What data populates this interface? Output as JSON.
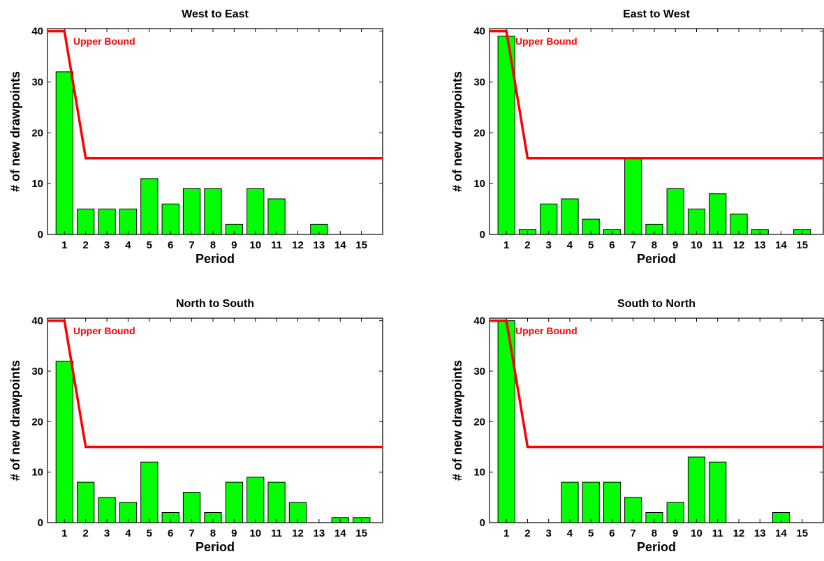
{
  "chart_data": [
    {
      "type": "bar",
      "title": "West to East",
      "xlabel": "Period",
      "ylabel": "# of new drawpoints",
      "categories": [
        "1",
        "2",
        "3",
        "4",
        "5",
        "6",
        "7",
        "8",
        "9",
        "10",
        "11",
        "12",
        "13",
        "14",
        "15"
      ],
      "values": [
        32,
        5,
        5,
        5,
        11,
        6,
        9,
        9,
        2,
        9,
        7,
        0,
        2,
        0,
        0
      ],
      "ylim": [
        0,
        40.5
      ],
      "yticks": [
        0,
        10,
        20,
        30,
        40
      ],
      "bar_color": "#00ff00",
      "upper_bound": {
        "label": "Upper Bound",
        "color": "#ff0000",
        "x": [
          0.2,
          1,
          2,
          16
        ],
        "y": [
          40,
          40,
          15,
          15
        ]
      }
    },
    {
      "type": "bar",
      "title": "East to West",
      "xlabel": "Period",
      "ylabel": "# of new drawpoints",
      "categories": [
        "1",
        "2",
        "3",
        "4",
        "5",
        "6",
        "7",
        "8",
        "9",
        "10",
        "11",
        "12",
        "13",
        "14",
        "15"
      ],
      "values": [
        39,
        1,
        6,
        7,
        3,
        1,
        15,
        2,
        9,
        5,
        8,
        4,
        1,
        0,
        1
      ],
      "ylim": [
        0,
        40.5
      ],
      "yticks": [
        0,
        10,
        20,
        30,
        40
      ],
      "bar_color": "#00ff00",
      "upper_bound": {
        "label": "Upper Bound",
        "color": "#ff0000",
        "x": [
          0.2,
          1,
          2,
          16
        ],
        "y": [
          40,
          40,
          15,
          15
        ]
      }
    },
    {
      "type": "bar",
      "title": "North to South",
      "xlabel": "Period",
      "ylabel": "# of new drawpoints",
      "categories": [
        "1",
        "2",
        "3",
        "4",
        "5",
        "6",
        "7",
        "8",
        "9",
        "10",
        "11",
        "12",
        "13",
        "14",
        "15"
      ],
      "values": [
        32,
        8,
        5,
        4,
        12,
        2,
        6,
        2,
        8,
        9,
        8,
        4,
        0,
        1,
        1
      ],
      "ylim": [
        0,
        40.5
      ],
      "yticks": [
        0,
        10,
        20,
        30,
        40
      ],
      "bar_color": "#00ff00",
      "upper_bound": {
        "label": "Upper Bound",
        "color": "#ff0000",
        "x": [
          0.2,
          1,
          2,
          16
        ],
        "y": [
          40,
          40,
          15,
          15
        ]
      }
    },
    {
      "type": "bar",
      "title": "South to North",
      "xlabel": "Period",
      "ylabel": "# of new drawpoints",
      "categories": [
        "1",
        "2",
        "3",
        "4",
        "5",
        "6",
        "7",
        "8",
        "9",
        "10",
        "11",
        "12",
        "13",
        "14",
        "15"
      ],
      "values": [
        40,
        0,
        0,
        8,
        8,
        8,
        5,
        2,
        4,
        13,
        12,
        0,
        0,
        2,
        0
      ],
      "ylim": [
        0,
        40.5
      ],
      "yticks": [
        0,
        10,
        20,
        30,
        40
      ],
      "bar_color": "#00ff00",
      "upper_bound": {
        "label": "Upper Bound",
        "color": "#ff0000",
        "x": [
          0.2,
          1,
          2,
          16
        ],
        "y": [
          40,
          40,
          15,
          15
        ]
      }
    }
  ]
}
